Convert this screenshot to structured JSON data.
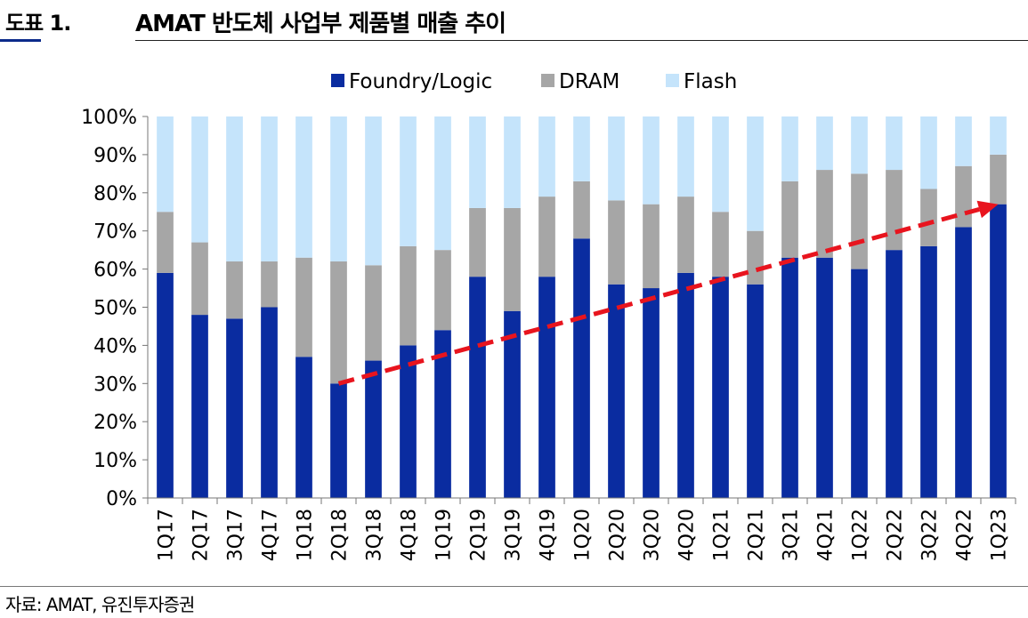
{
  "header": {
    "figure_label": "도표 1.",
    "title": "AMAT 반도체 사업부 제품별 매출 추이"
  },
  "source": "자료: AMAT, 유진투자증권",
  "colors": {
    "foundry": "#0a2ca0",
    "dram": "#a6a6a6",
    "flash": "#c5e4fb",
    "arrow": "#e8141e"
  },
  "chart_data": {
    "type": "bar",
    "stacked": true,
    "categories": [
      "1Q17",
      "2Q17",
      "3Q17",
      "4Q17",
      "1Q18",
      "2Q18",
      "3Q18",
      "4Q18",
      "1Q19",
      "2Q19",
      "3Q19",
      "4Q19",
      "1Q20",
      "2Q20",
      "3Q20",
      "4Q20",
      "1Q21",
      "2Q21",
      "3Q21",
      "4Q21",
      "1Q22",
      "2Q22",
      "3Q22",
      "4Q22",
      "1Q23"
    ],
    "series": [
      {
        "name": "Foundry/Logic",
        "values": [
          59,
          48,
          47,
          50,
          37,
          30,
          36,
          40,
          44,
          58,
          49,
          58,
          68,
          56,
          55,
          59,
          58,
          56,
          63,
          63,
          60,
          65,
          66,
          71,
          77
        ]
      },
      {
        "name": "DRAM",
        "values": [
          16,
          19,
          15,
          12,
          26,
          32,
          25,
          26,
          21,
          18,
          27,
          21,
          15,
          22,
          22,
          20,
          17,
          14,
          20,
          23,
          25,
          21,
          15,
          16,
          13
        ]
      },
      {
        "name": "Flash",
        "values": [
          25,
          33,
          38,
          38,
          37,
          38,
          39,
          34,
          35,
          24,
          24,
          21,
          17,
          22,
          23,
          21,
          25,
          30,
          17,
          14,
          15,
          14,
          19,
          13,
          10
        ]
      }
    ],
    "yticks": [
      "0%",
      "10%",
      "20%",
      "30%",
      "40%",
      "50%",
      "60%",
      "70%",
      "80%",
      "90%",
      "100%"
    ],
    "ylim": [
      0,
      100
    ],
    "legend_position": "top-center",
    "trend_arrow": {
      "from": {
        "x": "2Q18",
        "y": 30
      },
      "to": {
        "x": "1Q23",
        "y": 77
      }
    }
  }
}
